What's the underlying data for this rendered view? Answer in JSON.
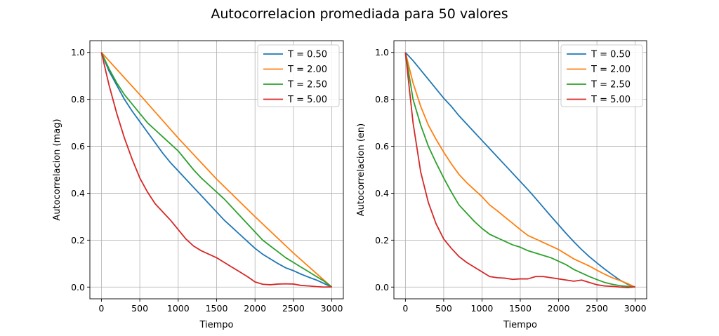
{
  "figure": {
    "title": "Autocorrelacion promediada para 50 valores"
  },
  "colors": {
    "T = 0.50": "#1f77b4",
    "T = 2.00": "#ff7f0e",
    "T = 2.50": "#2ca02c",
    "T = 5.00": "#d62728"
  },
  "chart_data": [
    {
      "type": "line",
      "title": "",
      "xlabel": "Tiempo",
      "ylabel": "Autocorrelacion (mag)",
      "xlim": [
        -150,
        3150
      ],
      "ylim": [
        -0.05,
        1.05
      ],
      "xticks": [
        0,
        500,
        1000,
        1500,
        2000,
        2500,
        3000
      ],
      "yticks": [
        0.0,
        0.2,
        0.4,
        0.6,
        0.8,
        1.0
      ],
      "grid": true,
      "legend": "top-right",
      "series": [
        {
          "name": "T = 0.50",
          "x": [
            0,
            100,
            200,
            300,
            400,
            500,
            600,
            700,
            800,
            900,
            1000,
            1100,
            1200,
            1300,
            1400,
            1500,
            1600,
            1700,
            1800,
            1900,
            2000,
            2100,
            2200,
            2300,
            2400,
            2500,
            2600,
            2700,
            2800,
            2900,
            3000
          ],
          "y": [
            1.0,
            0.92,
            0.86,
            0.8,
            0.75,
            0.705,
            0.66,
            0.615,
            0.57,
            0.53,
            0.495,
            0.46,
            0.425,
            0.39,
            0.355,
            0.32,
            0.285,
            0.255,
            0.225,
            0.195,
            0.165,
            0.14,
            0.12,
            0.1,
            0.082,
            0.07,
            0.055,
            0.042,
            0.03,
            0.015,
            0.0
          ]
        },
        {
          "name": "T = 2.00",
          "x": [
            0,
            500,
            1000,
            1500,
            2000,
            2500,
            3000
          ],
          "y": [
            1.0,
            0.82,
            0.635,
            0.46,
            0.3,
            0.145,
            0.0
          ]
        },
        {
          "name": "T = 2.50",
          "x": [
            0,
            100,
            200,
            300,
            400,
            500,
            600,
            700,
            800,
            900,
            1000,
            1100,
            1200,
            1300,
            1400,
            1500,
            1600,
            1700,
            1800,
            1900,
            2000,
            2100,
            2200,
            2300,
            2400,
            2500,
            2600,
            2700,
            2800,
            2900,
            3000
          ],
          "y": [
            1.0,
            0.93,
            0.87,
            0.82,
            0.78,
            0.74,
            0.7,
            0.67,
            0.64,
            0.61,
            0.58,
            0.54,
            0.5,
            0.465,
            0.435,
            0.405,
            0.375,
            0.34,
            0.305,
            0.27,
            0.235,
            0.2,
            0.175,
            0.15,
            0.125,
            0.105,
            0.085,
            0.065,
            0.045,
            0.025,
            0.0
          ]
        },
        {
          "name": "T = 5.00",
          "x": [
            0,
            100,
            200,
            300,
            400,
            500,
            600,
            700,
            800,
            900,
            1000,
            1100,
            1200,
            1300,
            1400,
            1500,
            1600,
            1700,
            1800,
            1900,
            2000,
            2100,
            2200,
            2300,
            2400,
            2500,
            2600,
            2700,
            2800,
            2900,
            3000
          ],
          "y": [
            1.0,
            0.86,
            0.74,
            0.635,
            0.545,
            0.465,
            0.405,
            0.355,
            0.32,
            0.285,
            0.245,
            0.205,
            0.175,
            0.155,
            0.14,
            0.125,
            0.105,
            0.085,
            0.065,
            0.045,
            0.022,
            0.012,
            0.01,
            0.013,
            0.014,
            0.013,
            0.007,
            0.005,
            0.002,
            0.0,
            0.001
          ]
        }
      ]
    },
    {
      "type": "line",
      "title": "",
      "xlabel": "Tiempo",
      "ylabel": "Autocorrelacion (en)",
      "xlim": [
        -150,
        3150
      ],
      "ylim": [
        -0.05,
        1.05
      ],
      "xticks": [
        0,
        500,
        1000,
        1500,
        2000,
        2500,
        3000
      ],
      "yticks": [
        0.0,
        0.2,
        0.4,
        0.6,
        0.8,
        1.0
      ],
      "grid": true,
      "legend": "top-right",
      "series": [
        {
          "name": "T = 0.50",
          "x": [
            0,
            100,
            200,
            300,
            400,
            500,
            600,
            700,
            800,
            900,
            1000,
            1100,
            1200,
            1300,
            1400,
            1500,
            1600,
            1700,
            1800,
            1900,
            2000,
            2100,
            2200,
            2300,
            2400,
            2500,
            2600,
            2700,
            2800,
            2900,
            3000
          ],
          "y": [
            1.0,
            0.965,
            0.925,
            0.885,
            0.845,
            0.805,
            0.77,
            0.73,
            0.695,
            0.66,
            0.625,
            0.59,
            0.555,
            0.52,
            0.485,
            0.45,
            0.415,
            0.378,
            0.34,
            0.302,
            0.265,
            0.228,
            0.193,
            0.16,
            0.13,
            0.103,
            0.077,
            0.053,
            0.03,
            0.012,
            0.0
          ]
        },
        {
          "name": "T = 2.00",
          "x": [
            0,
            100,
            200,
            300,
            400,
            500,
            600,
            700,
            800,
            900,
            1000,
            1100,
            1200,
            1300,
            1400,
            1500,
            1600,
            1700,
            1800,
            1900,
            2000,
            2100,
            2200,
            2300,
            2400,
            2500,
            2600,
            2700,
            2800,
            2900,
            3000
          ],
          "y": [
            1.0,
            0.87,
            0.77,
            0.69,
            0.63,
            0.575,
            0.525,
            0.48,
            0.445,
            0.415,
            0.385,
            0.35,
            0.325,
            0.298,
            0.272,
            0.245,
            0.22,
            0.205,
            0.19,
            0.175,
            0.16,
            0.14,
            0.12,
            0.105,
            0.09,
            0.072,
            0.055,
            0.04,
            0.028,
            0.015,
            0.0
          ]
        },
        {
          "name": "T = 2.50",
          "x": [
            0,
            100,
            200,
            300,
            400,
            500,
            600,
            700,
            800,
            900,
            1000,
            1100,
            1200,
            1300,
            1400,
            1500,
            1600,
            1700,
            1800,
            1900,
            2000,
            2100,
            2200,
            2300,
            2400,
            2500,
            2600,
            2700,
            2800,
            2900,
            3000
          ],
          "y": [
            1.0,
            0.8,
            0.69,
            0.6,
            0.53,
            0.465,
            0.405,
            0.35,
            0.315,
            0.28,
            0.25,
            0.225,
            0.21,
            0.195,
            0.18,
            0.17,
            0.155,
            0.145,
            0.135,
            0.125,
            0.11,
            0.095,
            0.075,
            0.06,
            0.045,
            0.032,
            0.02,
            0.012,
            0.006,
            0.003,
            0.0
          ]
        },
        {
          "name": "T = 5.00",
          "x": [
            0,
            100,
            200,
            300,
            400,
            500,
            600,
            700,
            800,
            900,
            1000,
            1100,
            1200,
            1300,
            1400,
            1500,
            1600,
            1700,
            1800,
            1900,
            2000,
            2100,
            2200,
            2300,
            2400,
            2500,
            2600,
            2700,
            2800,
            2900,
            3000
          ],
          "y": [
            1.0,
            0.7,
            0.49,
            0.36,
            0.27,
            0.205,
            0.165,
            0.13,
            0.105,
            0.085,
            0.065,
            0.045,
            0.04,
            0.038,
            0.033,
            0.035,
            0.035,
            0.045,
            0.045,
            0.04,
            0.035,
            0.03,
            0.025,
            0.03,
            0.02,
            0.01,
            0.005,
            0.003,
            0.0,
            -0.002,
            0.001
          ]
        }
      ]
    }
  ]
}
